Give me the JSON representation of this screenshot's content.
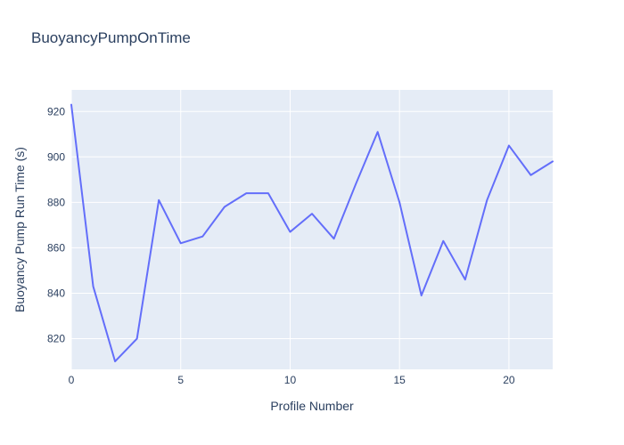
{
  "header": {
    "title": "BuoyancyPumpOnTime"
  },
  "chart_data": {
    "type": "line",
    "title": "BuoyancyPumpOnTime",
    "xlabel": "Profile Number",
    "ylabel": "Buoyancy Pump Run Time (s)",
    "x": [
      0,
      1,
      2,
      3,
      4,
      5,
      6,
      7,
      8,
      9,
      10,
      11,
      12,
      13,
      14,
      15,
      16,
      17,
      18,
      19,
      20,
      21,
      22
    ],
    "y": [
      923,
      843,
      810,
      820,
      881,
      862,
      865,
      878,
      884,
      884,
      867,
      875,
      864,
      888,
      911,
      880,
      839,
      863,
      846,
      881,
      905,
      892,
      898
    ],
    "xticks": [
      0,
      5,
      10,
      15,
      20
    ],
    "yticks": [
      820,
      840,
      860,
      880,
      900,
      920
    ],
    "xlim": [
      0,
      22
    ],
    "ylim": [
      806.5,
      929.5
    ],
    "grid": true,
    "legend": false,
    "series_name": "BuoyancyPumpOnTime",
    "colors": {
      "line": "#636efa",
      "plot_bg": "#e5ecf6",
      "paper_bg": "#ffffff",
      "grid": "#ffffff",
      "text": "#2a3f5f"
    }
  }
}
